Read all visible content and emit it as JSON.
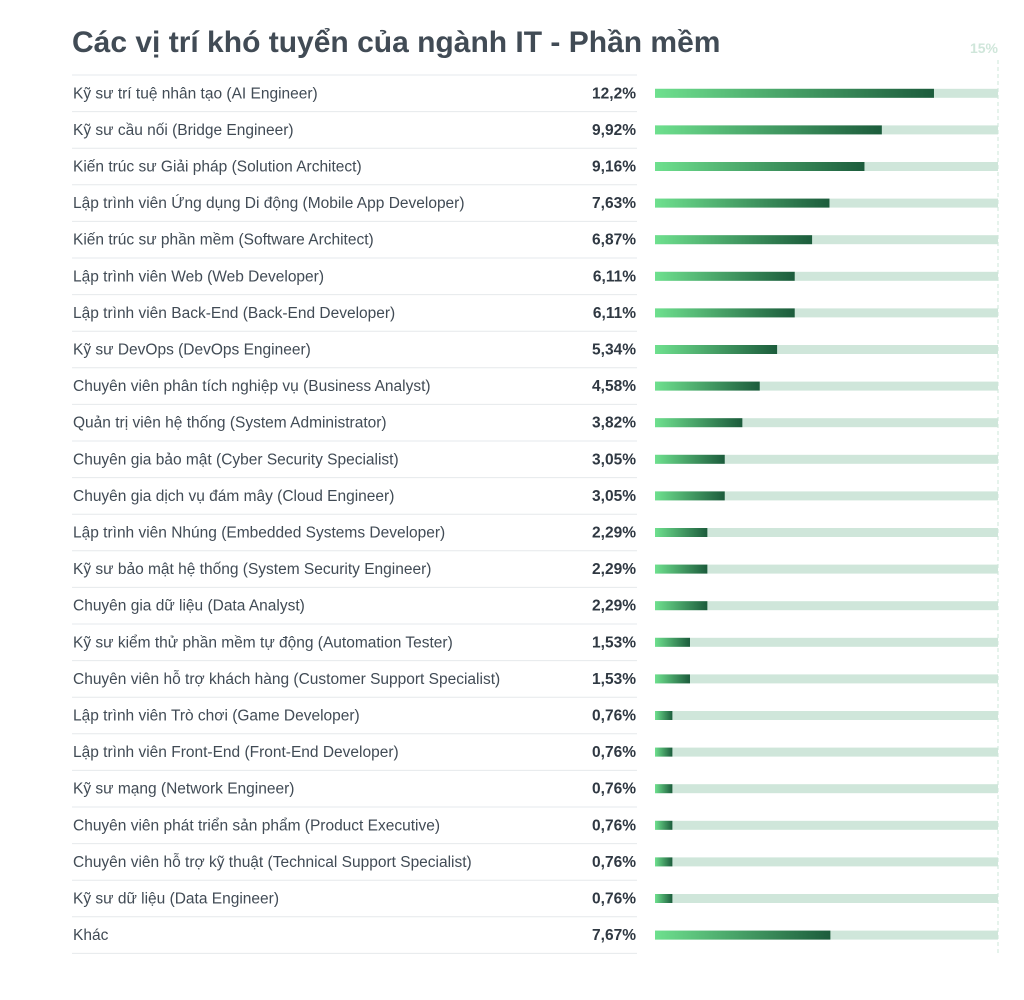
{
  "chart_data": {
    "type": "bar",
    "orientation": "horizontal",
    "title": "Các vị trí khó tuyển của ngành IT - Phần mềm",
    "axis_max_label": "15%",
    "xlim": [
      0,
      15
    ],
    "categories": [
      "Kỹ sư trí tuệ nhân tạo (AI Engineer)",
      "Kỹ sư cầu nối (Bridge Engineer)",
      "Kiến trúc sư Giải pháp (Solution Architect)",
      "Lập trình viên Ứng dụng Di động (Mobile App Developer)",
      "Kiến trúc sư phần mềm (Software Architect)",
      "Lập trình viên Web (Web Developer)",
      "Lập trình viên Back-End (Back-End Developer)",
      "Kỹ sư DevOps (DevOps Engineer)",
      "Chuyên viên phân tích nghiệp vụ (Business Analyst)",
      "Quản trị viên hệ thống (System Administrator)",
      "Chuyên gia bảo mật (Cyber Security Specialist)",
      "Chuyên gia dịch vụ đám mây (Cloud Engineer)",
      "Lập trình viên Nhúng (Embedded Systems Developer)",
      "Kỹ sư bảo mật hệ thống (System Security Engineer)",
      "Chuyên gia dữ liệu (Data Analyst)",
      "Kỹ sư kiểm thử phần mềm tự động (Automation Tester)",
      "Chuyên viên hỗ trợ khách hàng (Customer Support Specialist)",
      "Lập trình viên Trò chơi (Game Developer)",
      "Lập trình viên Front-End (Front-End Developer)",
      "Kỹ sư mạng (Network Engineer)",
      "Chuyên viên phát triển sản phẩm (Product Executive)",
      "Chuyên viên hỗ trợ kỹ thuật (Technical Support Specialist)",
      "Kỹ sư dữ liệu (Data Engineer)",
      "Khác"
    ],
    "values": [
      12.2,
      9.92,
      9.16,
      7.63,
      6.87,
      6.11,
      6.11,
      5.34,
      4.58,
      3.82,
      3.05,
      3.05,
      2.29,
      2.29,
      2.29,
      1.53,
      1.53,
      0.76,
      0.76,
      0.76,
      0.76,
      0.76,
      0.76,
      7.67
    ],
    "value_labels": [
      "12,2%",
      "9,92%",
      "9,16%",
      "7,63%",
      "6,87%",
      "6,11%",
      "6,11%",
      "5,34%",
      "4,58%",
      "3,82%",
      "3,05%",
      "3,05%",
      "2,29%",
      "2,29%",
      "2,29%",
      "1,53%",
      "1,53%",
      "0,76%",
      "0,76%",
      "0,76%",
      "0,76%",
      "0,76%",
      "0,76%",
      "7,67%"
    ],
    "grid": false,
    "legend": "none",
    "colors": {
      "bar_start": "#6ee08e",
      "bar_end": "#1c5c3c",
      "track": "#cfe6da",
      "title": "#414b55",
      "label": "#414b55",
      "value": "#2f3842",
      "divider": "#e6e9ec"
    }
  }
}
